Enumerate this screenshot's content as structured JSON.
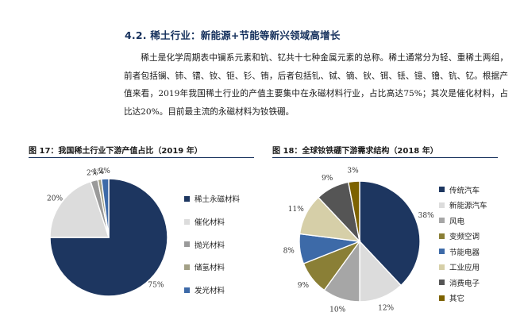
{
  "section": {
    "title": "4.2.  稀土行业：新能源+节能等新兴领域高增长",
    "paragraph": "稀土是化学周期表中镧系元素和钪、钇共十七种金属元素的总称。稀土通常分为轻、重稀土两组，前者包括镧、铈、镨、钕、钷、钐、铕，后者包括钆、铽、镝、钬、铒、铥、镱、镥、钪、钇。根据产值来看，2019年我国稀土行业的产值主要集中在永磁材料行业，占比高达75%；其次是催化材料，占比达20%。目前最主流的永磁材料为钕铁硼。"
  },
  "chart_data": [
    {
      "type": "pie",
      "title": "图 17：我国稀土行业下游产值占比（2019 年）",
      "labels": [
        "稀土永磁材料",
        "催化材料",
        "抛光材料",
        "储氢材料",
        "发光材料"
      ],
      "values": [
        75,
        20,
        2,
        1,
        2
      ],
      "value_labels": [
        "75%",
        "20%",
        "2%",
        "1%",
        "2%"
      ],
      "colors": [
        "#1d3660",
        "#dcdcdc",
        "#9a9a9a",
        "#a3a086",
        "#3d6aa8"
      ],
      "legend_position": "right"
    },
    {
      "type": "pie",
      "title": "图 18：全球钕铁硼下游需求结构（2018 年）",
      "labels": [
        "传统汽车",
        "新能源汽车",
        "风电",
        "变频空调",
        "节能电器",
        "工业应用",
        "消费电子",
        "其它"
      ],
      "values": [
        38,
        12,
        10,
        9,
        8,
        11,
        9,
        3
      ],
      "value_labels": [
        "38%",
        "12%",
        "10%",
        "9%",
        "8%",
        "11%",
        "9%",
        "3%"
      ],
      "colors": [
        "#1d3660",
        "#dcdcdc",
        "#a6a6a6",
        "#8a7f36",
        "#3d6aa8",
        "#d6cfa8",
        "#555555",
        "#7d6200"
      ],
      "legend_position": "right"
    }
  ]
}
